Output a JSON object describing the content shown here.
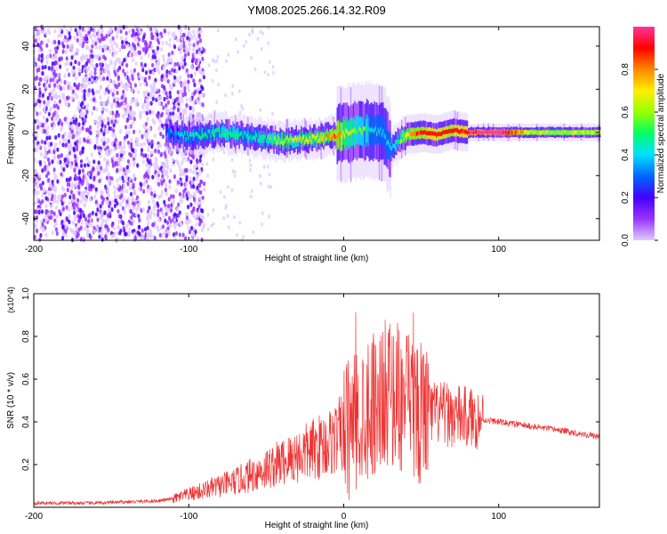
{
  "title": "YM08.2025.266.14.32.R09",
  "chart_data": [
    {
      "type": "heatmap",
      "title": "YM08.2025.266.14.32.R09",
      "xlabel": "Height of straight line (km)",
      "ylabel": "Frequency (Hz)",
      "xlim": [
        -200,
        165
      ],
      "ylim": [
        -50,
        49
      ],
      "xticks": [
        -200,
        -100,
        0,
        100
      ],
      "yticks": [
        -40,
        -20,
        0,
        20,
        40
      ],
      "colorbar": {
        "label": "Normalized spectral amplitude",
        "range": [
          0.0,
          1.0
        ],
        "ticks": [
          "0.0",
          "0.2",
          "0.4",
          "0.6",
          "0.8"
        ],
        "colors": [
          "#e0ccff",
          "#9933ff",
          "#4400ff",
          "#0066ff",
          "#00e0ff",
          "#00ff66",
          "#99ff00",
          "#ffee00",
          "#ff8800",
          "#ff0000",
          "#ff3399"
        ]
      },
      "ridge": {
        "x": [
          -115,
          -100,
          -80,
          -60,
          -40,
          -20,
          -5,
          5,
          15,
          25,
          30,
          35,
          40,
          50,
          60,
          70,
          80,
          90,
          100,
          120,
          140,
          165
        ],
        "freq": [
          0,
          -2,
          0,
          -2,
          -4,
          -3,
          -1,
          0,
          1,
          0,
          -8,
          -4,
          -1,
          0,
          -1,
          1,
          0,
          0,
          0,
          0,
          0,
          0
        ],
        "amplitude": [
          0.35,
          0.45,
          0.5,
          0.45,
          0.6,
          0.65,
          0.8,
          0.6,
          0.5,
          0.4,
          0.4,
          0.5,
          0.7,
          0.85,
          0.9,
          0.85,
          0.9,
          0.95,
          0.95,
          0.65,
          0.6,
          0.65
        ]
      }
    },
    {
      "type": "line",
      "xlabel": "Height of straight line (km)",
      "ylabel": "SNR (10 * v/v)",
      "yscale_label": "(x10^4)",
      "xlim": [
        -200,
        165
      ],
      "ylim": [
        0,
        1.0
      ],
      "xticks": [
        -200,
        -100,
        0,
        100
      ],
      "yticks": [
        0.2,
        0.4,
        0.6,
        0.8,
        1.0
      ],
      "color": "#ee3333",
      "series": [
        {
          "name": "SNR",
          "x": [
            -200,
            -160,
            -120,
            -110,
            -100,
            -90,
            -80,
            -70,
            -60,
            -50,
            -40,
            -30,
            -20,
            -10,
            0,
            5,
            10,
            15,
            20,
            25,
            30,
            35,
            40,
            45,
            50,
            55,
            60,
            70,
            80,
            90,
            100,
            120,
            140,
            165
          ],
          "y": [
            0.02,
            0.02,
            0.03,
            0.04,
            0.06,
            0.08,
            0.1,
            0.12,
            0.15,
            0.18,
            0.21,
            0.24,
            0.27,
            0.3,
            0.35,
            0.38,
            0.42,
            0.48,
            0.5,
            0.52,
            0.55,
            0.52,
            0.48,
            0.46,
            0.45,
            0.44,
            0.44,
            0.43,
            0.42,
            0.41,
            0.4,
            0.38,
            0.36,
            0.33
          ]
        }
      ]
    }
  ]
}
